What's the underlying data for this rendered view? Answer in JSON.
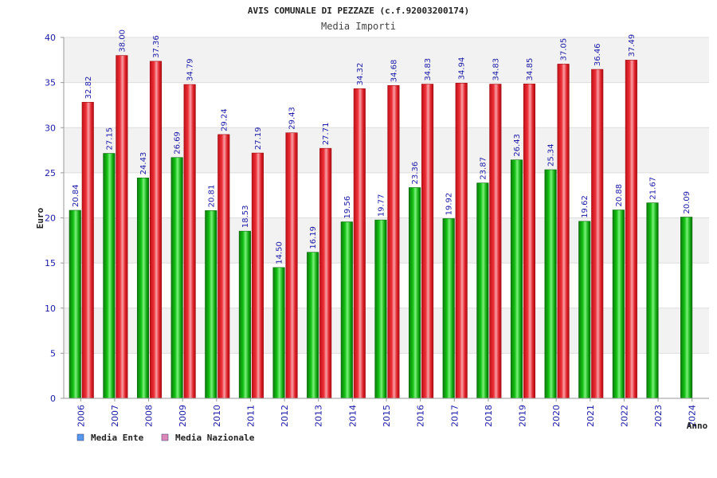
{
  "chart_data": {
    "type": "bar",
    "title": "AVIS COMUNALE DI PEZZAZE (c.f.92003200174)",
    "subtitle": "Media Importi",
    "ylabel": "Euro",
    "xlabel": "Anno",
    "ylim": [
      0,
      40
    ],
    "yticks": [
      "0",
      "5",
      "10",
      "15",
      "20",
      "25",
      "30",
      "35",
      "40"
    ],
    "categories": [
      "2006",
      "2007",
      "2008",
      "2009",
      "2010",
      "2011",
      "2012",
      "2013",
      "2014",
      "2015",
      "2016",
      "2017",
      "2018",
      "2019",
      "2020",
      "2021",
      "2022",
      "2023",
      "2024"
    ],
    "series": [
      {
        "name": "Media Ente",
        "color": "#11aa11",
        "legend_color": "#5599ee",
        "values": [
          20.84,
          27.15,
          24.43,
          26.69,
          20.81,
          18.53,
          14.5,
          16.19,
          19.56,
          19.77,
          23.36,
          19.92,
          23.87,
          26.43,
          25.34,
          19.62,
          20.88,
          21.67,
          20.09
        ],
        "labels": [
          "20.84",
          "27.15",
          "24.43",
          "26.69",
          "20.81",
          "18.53",
          "14.50",
          "16.19",
          "19.56",
          "19.77",
          "23.36",
          "19.92",
          "23.87",
          "26.43",
          "25.34",
          "19.62",
          "20.88",
          "21.67",
          "20.09"
        ]
      },
      {
        "name": "Media Nazionale",
        "color": "#e8202a",
        "legend_color": "#dd88bb",
        "values": [
          32.82,
          38.0,
          37.36,
          34.79,
          29.24,
          27.19,
          29.43,
          27.71,
          34.32,
          34.68,
          34.83,
          34.94,
          34.83,
          34.85,
          37.05,
          36.46,
          37.49,
          null,
          null
        ],
        "labels": [
          "32.82",
          "38.00",
          "37.36",
          "34.79",
          "29.24",
          "27.19",
          "29.43",
          "27.71",
          "34.32",
          "34.68",
          "34.83",
          "34.94",
          "34.83",
          "34.85",
          "37.05",
          "36.46",
          "37.49",
          "",
          ""
        ]
      }
    ],
    "legend": "bottom-left"
  }
}
